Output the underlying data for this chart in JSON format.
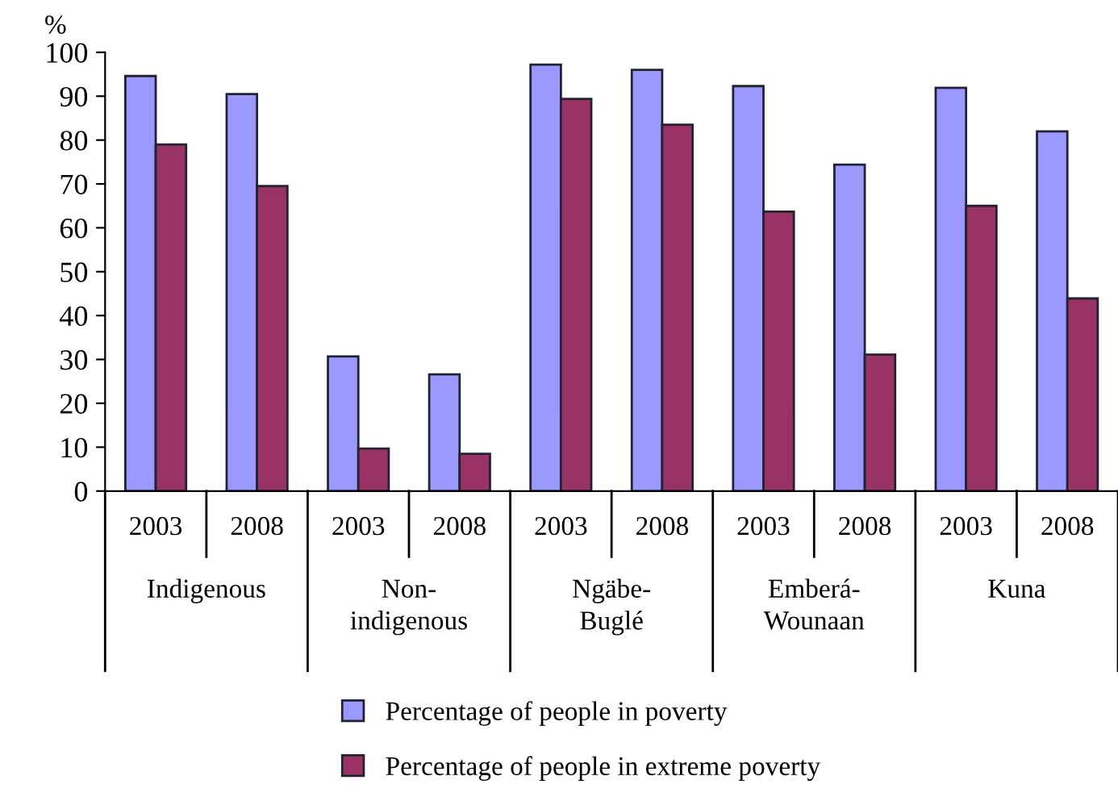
{
  "chart_data": {
    "type": "bar",
    "ylabel": "%",
    "categories": [
      "2003",
      "2008",
      "2003",
      "2008",
      "2003",
      "2008",
      "2003",
      "2008",
      "2003",
      "2008"
    ],
    "series": [
      {
        "name": "Percentage of people in poverty",
        "color": "#9999ff",
        "values": [
          94.6,
          90.5,
          30.7,
          26.6,
          97.2,
          96,
          92.3,
          74.4,
          91.9,
          82
        ]
      },
      {
        "name": "Percentage of people in extreme poverty",
        "color": "#993366",
        "values": [
          79,
          69.5,
          9.7,
          8.5,
          89.4,
          83.5,
          63.7,
          31.1,
          65,
          43.9
        ]
      }
    ],
    "annotations": [
      "Indigenous",
      "Non-\nindigenous",
      "Ngäbe-\nBuglé",
      "Emberá-\nWounaan",
      "Kuna"
    ],
    "ylim": [
      0,
      100
    ],
    "yticks": [
      0,
      10,
      20,
      30,
      40,
      50,
      60,
      70,
      80,
      90,
      100
    ],
    "grid": false,
    "legend": "bottom"
  }
}
